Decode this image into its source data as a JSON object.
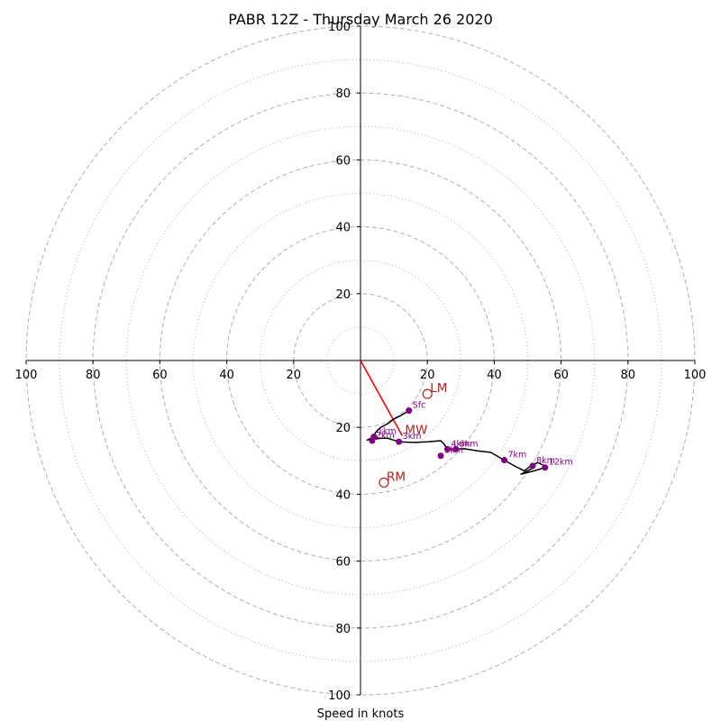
{
  "chart_data": {
    "type": "hodograph",
    "title": "PABR 12Z - Thursday March 26 2020",
    "xlabel": "Speed in knots",
    "ylabel": "",
    "range": [
      -100,
      100
    ],
    "rings_major": [
      20,
      40,
      60,
      80,
      100
    ],
    "rings_minor": [
      10,
      30,
      50,
      70,
      90
    ],
    "x_tick_labels": [
      "100",
      "80",
      "60",
      "40",
      "20",
      "20",
      "40",
      "60",
      "80",
      "100"
    ],
    "y_tick_labels": [
      "100",
      "80",
      "60",
      "40",
      "20",
      "20",
      "40",
      "60",
      "80",
      "100"
    ],
    "colors": {
      "trace": "#000000",
      "points": "#800080",
      "labels": "#800080",
      "motion": "#b22222",
      "mean_wind_line": "#ff0000",
      "rings": "#b0b0b0"
    },
    "trace": [
      [
        14.5,
        -15.0
      ],
      [
        12,
        -16.5
      ],
      [
        10,
        -17.5
      ],
      [
        8,
        -19
      ],
      [
        6,
        -20
      ],
      [
        4.5,
        -21.5
      ],
      [
        4,
        -22.8
      ],
      [
        2,
        -23.8
      ],
      [
        3,
        -23.5
      ],
      [
        4,
        -23.5
      ],
      [
        6,
        -23.3
      ],
      [
        8,
        -23.2
      ],
      [
        11.5,
        -24.3
      ],
      [
        16,
        -24.5
      ],
      [
        20,
        -24.3
      ],
      [
        24,
        -24.0
      ],
      [
        25,
        -25.0
      ],
      [
        26,
        -26.5
      ],
      [
        28.5,
        -26.5
      ],
      [
        31,
        -26.4
      ],
      [
        35,
        -27.0
      ],
      [
        39,
        -27.5
      ],
      [
        43,
        -29.8
      ],
      [
        46,
        -31.5
      ],
      [
        49,
        -33.0
      ],
      [
        51,
        -31.5
      ],
      [
        53,
        -30.5
      ],
      [
        54,
        -31.0
      ],
      [
        55,
        -31.5
      ],
      [
        55.2,
        -32.0
      ],
      [
        52,
        -33.0
      ],
      [
        48,
        -34.0
      ],
      [
        52,
        -32.0
      ],
      [
        51.5,
        -31.5
      ]
    ],
    "points": [
      {
        "label": "Sfc",
        "u": 14.5,
        "v": -15.0
      },
      {
        "label": "1km",
        "u": 4.0,
        "v": -22.8
      },
      {
        "label": "2km",
        "u": 3.5,
        "v": -24.0
      },
      {
        "label": "3km",
        "u": 11.5,
        "v": -24.3
      },
      {
        "label": "4km",
        "u": 26.0,
        "v": -26.5
      },
      {
        "label": "5km",
        "u": 24.0,
        "v": -28.5
      },
      {
        "label": "6km",
        "u": 28.5,
        "v": -26.5
      },
      {
        "label": "7km",
        "u": 43.0,
        "v": -29.8
      },
      {
        "label": "8km",
        "u": 51.5,
        "v": -31.5
      },
      {
        "label": "12km",
        "u": 55.2,
        "v": -32.0
      }
    ],
    "motions": [
      {
        "label": "LM",
        "u": 20.0,
        "v": -10.0
      },
      {
        "label": "MW",
        "u": 12.5,
        "v": -22.5
      },
      {
        "label": "RM",
        "u": 7.0,
        "v": -36.5
      }
    ]
  }
}
